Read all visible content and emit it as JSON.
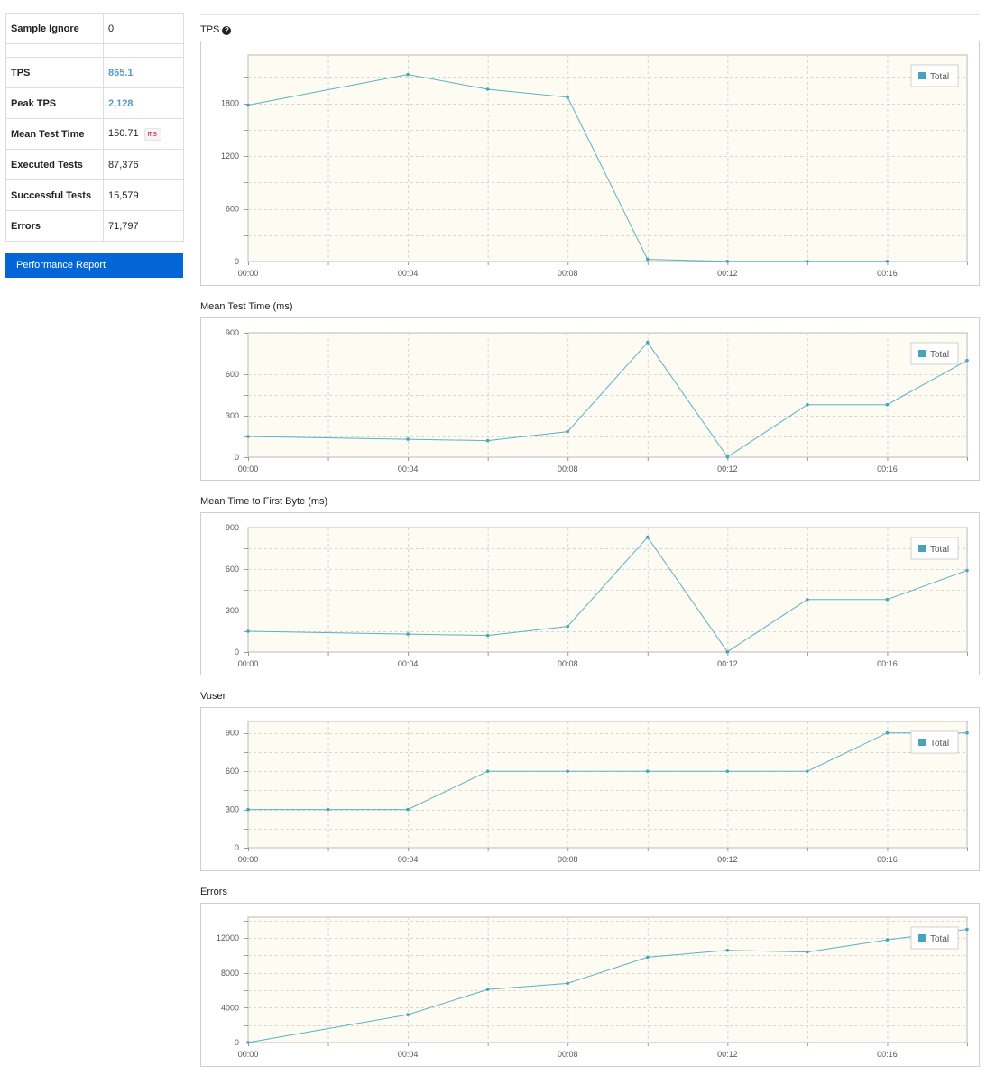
{
  "summary": {
    "rows": [
      {
        "label": "Sample Ignore",
        "value": "0"
      },
      {
        "label": "TPS",
        "value": "865.1"
      },
      {
        "label": "Peak TPS",
        "value": "2,128"
      },
      {
        "label": "Mean Test Time",
        "value": "150.71",
        "unit": "ms"
      },
      {
        "label": "Executed Tests",
        "value": "87,376"
      },
      {
        "label": "Successful Tests",
        "value": "15,579"
      },
      {
        "label": "Errors",
        "value": "71,797"
      }
    ]
  },
  "buttons": {
    "performance_report": "Performance Report"
  },
  "colors": {
    "series": "#5ab1c9",
    "button": "#0366d6",
    "plot_background": "#fdfbf2"
  },
  "icons": {
    "tps_help": "question-circle-icon"
  },
  "chart_data": [
    {
      "type": "line",
      "title": "TPS",
      "x": [
        "00:00",
        "00:02",
        "00:04",
        "00:06",
        "00:08",
        "00:10",
        "00:12",
        "00:14",
        "00:16",
        "00:18"
      ],
      "xticks": [
        "00:00",
        "00:04",
        "00:08",
        "00:12",
        "00:16"
      ],
      "series": [
        {
          "name": "Total",
          "values": [
            1780,
            null,
            2128,
            1960,
            1870,
            25,
            2,
            2,
            2,
            null
          ]
        }
      ],
      "ylim": [
        0,
        2350
      ],
      "yticks": [
        0,
        600,
        1200,
        1800
      ],
      "grid": true,
      "legend_position": "top-right"
    },
    {
      "type": "line",
      "title": "Mean Test Time (ms)",
      "x": [
        "00:00",
        "00:02",
        "00:04",
        "00:06",
        "00:08",
        "00:10",
        "00:12",
        "00:14",
        "00:16",
        "00:18"
      ],
      "xticks": [
        "00:00",
        "00:04",
        "00:08",
        "00:12",
        "00:16"
      ],
      "series": [
        {
          "name": "Total",
          "values": [
            150,
            null,
            130,
            120,
            185,
            830,
            2,
            380,
            380,
            700
          ]
        }
      ],
      "ylim": [
        0,
        900
      ],
      "yticks": [
        0,
        300,
        600,
        900
      ],
      "grid": true,
      "legend_position": "top-right"
    },
    {
      "type": "line",
      "title": "Mean Time to First Byte (ms)",
      "x": [
        "00:00",
        "00:02",
        "00:04",
        "00:06",
        "00:08",
        "00:10",
        "00:12",
        "00:14",
        "00:16",
        "00:18"
      ],
      "xticks": [
        "00:00",
        "00:04",
        "00:08",
        "00:12",
        "00:16"
      ],
      "series": [
        {
          "name": "Total",
          "values": [
            150,
            null,
            130,
            120,
            185,
            830,
            2,
            380,
            380,
            590
          ]
        }
      ],
      "ylim": [
        0,
        900
      ],
      "yticks": [
        0,
        300,
        600,
        900
      ],
      "grid": true,
      "legend_position": "top-right"
    },
    {
      "type": "line",
      "title": "Vuser",
      "x": [
        "00:00",
        "00:02",
        "00:04",
        "00:06",
        "00:08",
        "00:10",
        "00:12",
        "00:14",
        "00:16",
        "00:18"
      ],
      "xticks": [
        "00:00",
        "00:04",
        "00:08",
        "00:12",
        "00:16"
      ],
      "series": [
        {
          "name": "Total",
          "values": [
            300,
            300,
            300,
            600,
            600,
            600,
            600,
            600,
            900,
            900
          ]
        }
      ],
      "ylim": [
        0,
        990
      ],
      "yticks": [
        0,
        300,
        600,
        900
      ],
      "grid": true,
      "legend_position": "top-right"
    },
    {
      "type": "line",
      "title": "Errors",
      "x": [
        "00:00",
        "00:02",
        "00:04",
        "00:06",
        "00:08",
        "00:10",
        "00:12",
        "00:14",
        "00:16",
        "00:18"
      ],
      "xticks": [
        "00:00",
        "00:04",
        "00:08",
        "00:12",
        "00:16"
      ],
      "series": [
        {
          "name": "Total",
          "values": [
            0,
            null,
            3200,
            6100,
            6800,
            9800,
            10600,
            10400,
            11800,
            13000
          ]
        }
      ],
      "ylim": [
        0,
        14400
      ],
      "yticks": [
        0,
        4000,
        8000,
        12000
      ],
      "grid": true,
      "legend_position": "top-right"
    }
  ]
}
